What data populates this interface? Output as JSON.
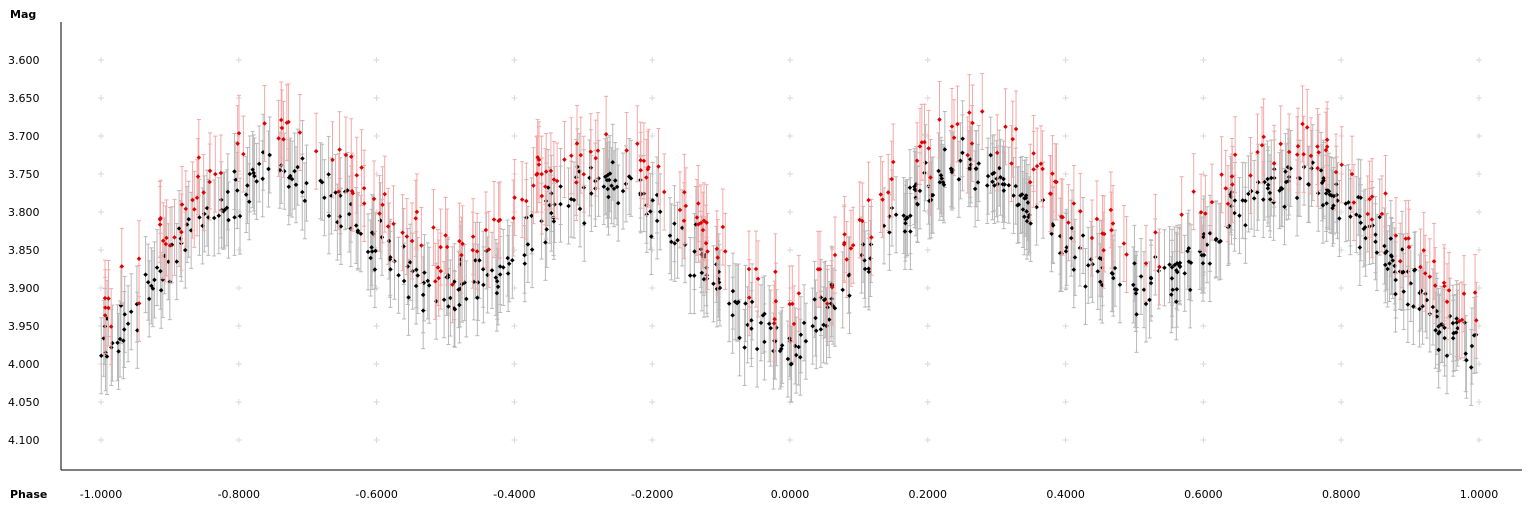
{
  "chart_data": {
    "type": "scatter",
    "ylabel": "Mag",
    "xlabel": "Phase",
    "xlim": [
      -1.0,
      1.0
    ],
    "ylim": [
      3.555,
      4.145
    ],
    "y_inverted": true,
    "grid": "plus-markers",
    "x_ticks": [
      "-1.0000",
      "-0.8000",
      "-0.6000",
      "-0.4000",
      "-0.2000",
      "0.0000",
      "0.2000",
      "0.4000",
      "0.6000",
      "0.8000",
      "1.0000"
    ],
    "y_ticks": [
      "3.600",
      "3.650",
      "3.700",
      "3.750",
      "3.800",
      "3.850",
      "3.900",
      "3.950",
      "4.000",
      "4.050",
      "4.100"
    ],
    "curve": {
      "phase": [
        0.0,
        0.05,
        0.1,
        0.15,
        0.2,
        0.25,
        0.3,
        0.35,
        0.4,
        0.45,
        0.5,
        0.55,
        0.6,
        0.65,
        0.7,
        0.75,
        0.8,
        0.85,
        0.9,
        0.95,
        1.0
      ],
      "mag": [
        3.96,
        3.91,
        3.85,
        3.79,
        3.75,
        3.72,
        3.73,
        3.77,
        3.82,
        3.86,
        3.89,
        3.87,
        3.83,
        3.78,
        3.75,
        3.74,
        3.77,
        3.82,
        3.88,
        3.93,
        3.96
      ]
    },
    "series": [
      {
        "name": "",
        "color": "#000000",
        "error_color": "#b8b8b8",
        "points": 650,
        "offset": 0.02
      },
      {
        "name": "",
        "color": "#e00000",
        "error_color": "#f4a8a8",
        "points": 280,
        "offset": -0.03
      }
    ],
    "error_bar_half_width": 0.05
  },
  "colors": {
    "axis": "#000000",
    "grid_marker": "#d9d9d9"
  }
}
